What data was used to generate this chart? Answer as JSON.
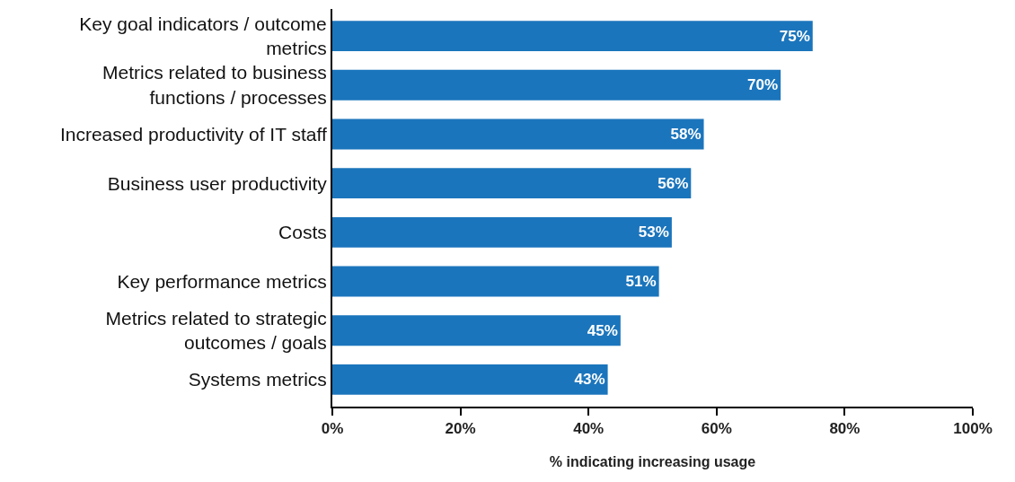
{
  "chart_data": {
    "type": "bar",
    "orientation": "horizontal",
    "categories": [
      "Key goal indicators / outcome\nmetrics",
      "Metrics related to business\nfunctions / processes",
      "Increased productivity of IT staff",
      "Business user productivity",
      "Costs",
      "Key performance metrics",
      "Metrics related to strategic\noutcomes / goals",
      "Systems metrics"
    ],
    "values": [
      75,
      70,
      58,
      56,
      53,
      51,
      45,
      43
    ],
    "value_labels": [
      "75%",
      "70%",
      "58%",
      "56%",
      "53%",
      "51%",
      "45%",
      "43%"
    ],
    "color": "#1b75bc",
    "xlabel": "% indicating increasing usage",
    "xlim": [
      0,
      100
    ],
    "xticks": [
      {
        "value": 0,
        "label": "0%"
      },
      {
        "value": 20,
        "label": "20%"
      },
      {
        "value": 40,
        "label": "40%"
      },
      {
        "value": 60,
        "label": "60%"
      },
      {
        "value": 80,
        "label": "80%"
      },
      {
        "value": 100,
        "label": "100%"
      }
    ],
    "grid": false,
    "legend": false
  }
}
